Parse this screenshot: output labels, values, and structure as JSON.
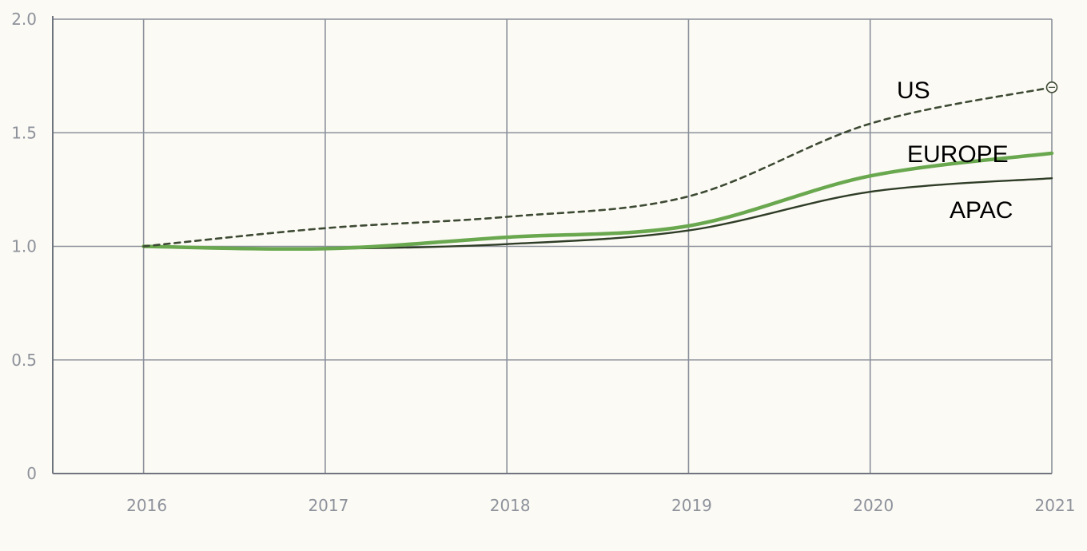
{
  "chart_data": {
    "type": "line",
    "title": "",
    "xlabel": "",
    "ylabel": "",
    "x": [
      2016,
      2017,
      2018,
      2019,
      2020,
      2021
    ],
    "xlim": [
      2015.5,
      2021
    ],
    "ylim": [
      0,
      2.0
    ],
    "x_tick_labels": [
      "2016",
      "2017",
      "2018",
      "2019",
      "2020",
      "2021"
    ],
    "y_tick_labels": [
      "0",
      "0.5",
      "1.0",
      "1.5",
      "2.0"
    ],
    "y_ticks": [
      0,
      0.5,
      1.0,
      1.5,
      2.0
    ],
    "grid": true,
    "legend": "inline labels at line ends",
    "series": [
      {
        "name": "US",
        "values": [
          1.0,
          1.08,
          1.13,
          1.22,
          1.54,
          1.7
        ],
        "color": "#3d4a33",
        "style": "dashed",
        "end_marker": "open-circle"
      },
      {
        "name": "EUROPE",
        "values": [
          1.0,
          0.99,
          1.04,
          1.09,
          1.31,
          1.41
        ],
        "color": "#6aa84f",
        "style": "solid"
      },
      {
        "name": "APAC",
        "values": [
          1.0,
          0.99,
          1.01,
          1.07,
          1.24,
          1.3
        ],
        "color": "#2f3d27",
        "style": "solid"
      }
    ]
  }
}
